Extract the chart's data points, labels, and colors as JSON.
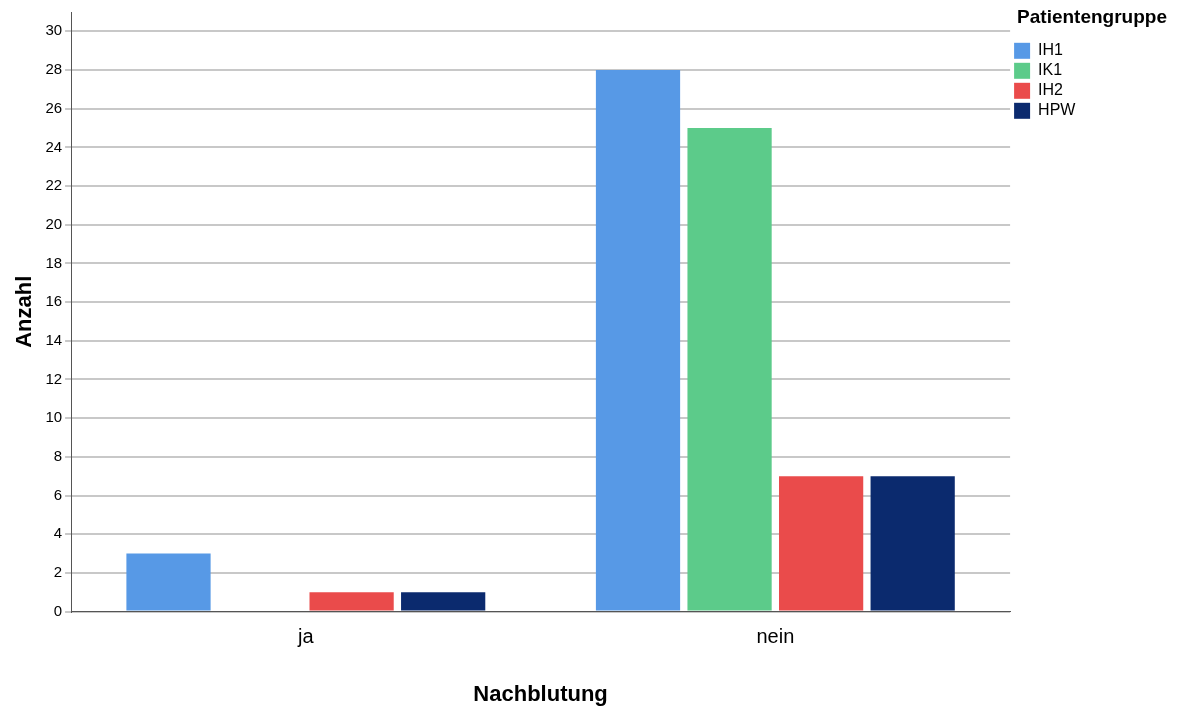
{
  "chart_data": {
    "type": "bar",
    "xlabel": "Nachblutung",
    "ylabel": "Anzahl",
    "legend_title": "Patientengruppe",
    "categories": [
      "ja",
      "nein"
    ],
    "series": [
      {
        "name": "IH1",
        "color": "#5799e6",
        "values": [
          3,
          28
        ]
      },
      {
        "name": "IK1",
        "color": "#5ccb8a",
        "values": [
          0,
          25
        ]
      },
      {
        "name": "IH2",
        "color": "#ea4b4b",
        "values": [
          1,
          7
        ]
      },
      {
        "name": "HPW",
        "color": "#0b2a6e",
        "values": [
          1,
          7
        ]
      }
    ],
    "ylim": [
      0,
      31
    ],
    "yticks": [
      0,
      2,
      4,
      6,
      8,
      10,
      12,
      14,
      16,
      18,
      20,
      22,
      24,
      26,
      28,
      30
    ],
    "grid": "y",
    "legend": "top right"
  }
}
